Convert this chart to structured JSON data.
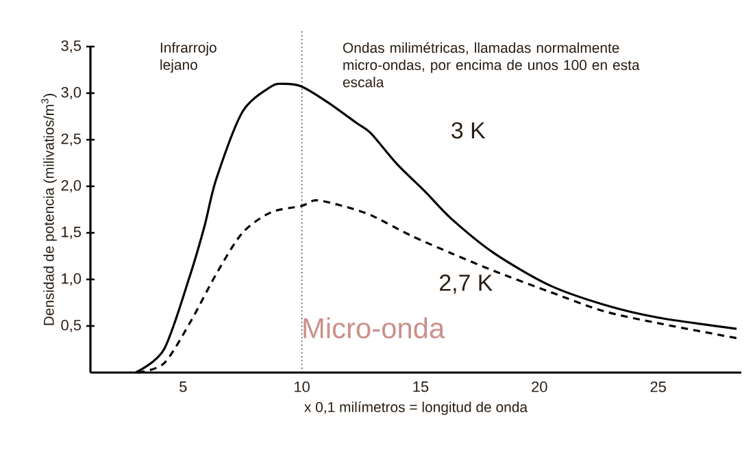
{
  "chart_data": {
    "type": "line",
    "xlabel": "x 0,1 milímetros = longitud de onda",
    "ylabel": "Densidad de potencia (milivatios/m$^{3}$)",
    "xlim": [
      1.1,
      28.5
    ],
    "ylim": [
      0,
      3.5
    ],
    "xticks": [
      5,
      10,
      15,
      20,
      25
    ],
    "yticks": [
      {
        "value": 0.5,
        "label": "0,5"
      },
      {
        "value": 1.0,
        "label": "1,0"
      },
      {
        "value": 1.5,
        "label": "1,5"
      },
      {
        "value": 2.0,
        "label": "2,0"
      },
      {
        "value": 2.5,
        "label": "2,5"
      },
      {
        "value": 3.0,
        "label": "3,0"
      },
      {
        "value": 3.5,
        "label": "3,5"
      }
    ],
    "series": [
      {
        "name": "3 K",
        "color": "#000000",
        "line_style": "solid",
        "x": [
          3.0,
          4.2,
          5.3,
          5.9,
          6.4,
          7.5,
          8.7,
          9.25,
          10.0,
          11.1,
          12.3,
          12.9,
          14.0,
          15.2,
          16.3,
          18.1,
          20.4,
          22.7,
          25.0,
          28.3
        ],
        "values": [
          0,
          0.25,
          1.05,
          1.57,
          2.08,
          2.8,
          3.07,
          3.1,
          3.07,
          2.9,
          2.68,
          2.57,
          2.24,
          1.94,
          1.65,
          1.28,
          0.94,
          0.73,
          0.59,
          0.47
        ]
      },
      {
        "name": "2,7 K",
        "color": "#000000",
        "line_style": "dashed",
        "x": [
          3.1,
          4.2,
          5.3,
          6.4,
          7.5,
          8.7,
          10.0,
          10.6,
          11.7,
          12.9,
          14.6,
          16.3,
          18.1,
          20.4,
          22.7,
          25.0,
          28.3
        ],
        "values": [
          0,
          0.1,
          0.54,
          1.06,
          1.5,
          1.72,
          1.79,
          1.85,
          1.79,
          1.69,
          1.47,
          1.28,
          1.09,
          0.87,
          0.66,
          0.53,
          0.37
        ]
      }
    ],
    "ref_lines": [
      {
        "axis": "x",
        "value": 10,
        "color": "#333333",
        "line_style": "dotted"
      }
    ],
    "annotations": [
      "Infrarrojo lejano",
      "Ondas milimétricas, llamadas normalmente micro-ondas, por encima de unos 100 en esta escala",
      "Micro-onda"
    ]
  }
}
